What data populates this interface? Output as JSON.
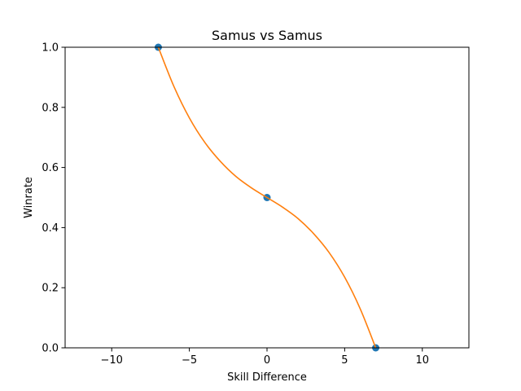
{
  "chart_data": {
    "type": "scatter",
    "title": "Samus vs Samus",
    "xlabel": "Skill Difference",
    "ylabel": "Winrate",
    "xlim": [
      -13,
      13
    ],
    "ylim": [
      0,
      1
    ],
    "grid": false,
    "xticks": [
      -10,
      -5,
      0,
      5,
      10
    ],
    "xtick_labels": [
      "−10",
      "−5",
      "0",
      "5",
      "10"
    ],
    "yticks": [
      0,
      0.2,
      0.4,
      0.6,
      0.8,
      1.0
    ],
    "ytick_labels": [
      "0.0",
      "0.2",
      "0.4",
      "0.6",
      "0.8",
      "1.0"
    ],
    "series": [
      {
        "kind": "scatter",
        "color": "#1f77b4",
        "x": [
          -7,
          0,
          7
        ],
        "y": [
          1.0,
          0.5,
          0.0
        ]
      },
      {
        "kind": "line",
        "color": "#ff7f0e",
        "x": [
          -7,
          -6,
          -5,
          -4,
          -3,
          -2,
          -1,
          0,
          1,
          2,
          3,
          4,
          5,
          6,
          7
        ],
        "y": [
          1.0,
          0.87,
          0.765,
          0.683,
          0.62,
          0.57,
          0.532,
          0.5,
          0.468,
          0.43,
          0.38,
          0.317,
          0.235,
          0.13,
          0.0
        ]
      }
    ]
  }
}
